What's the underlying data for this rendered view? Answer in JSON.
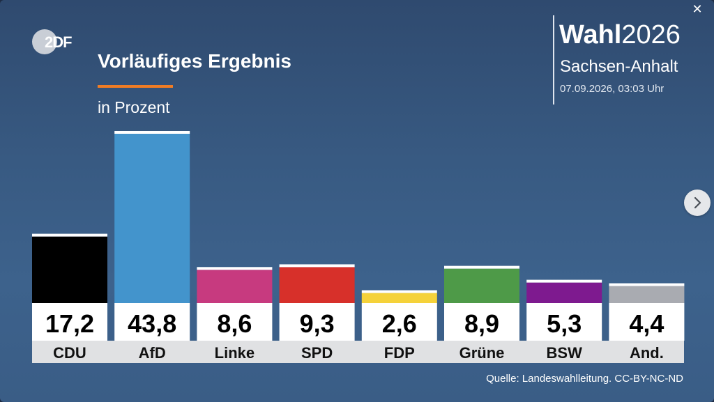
{
  "header": {
    "logo_text": "2DF",
    "title": "Vorläufiges Ergebnis",
    "subtitle": "in Prozent",
    "brand_bold": "Wahl",
    "brand_year": "2026",
    "region": "Sachsen-Anhalt",
    "timestamp": "07.09.2026, 03:03 Uhr"
  },
  "controls": {
    "close_glyph": "✕",
    "close_icon": "close-icon",
    "next_icon": "chevron-right-icon"
  },
  "colors": {
    "accent": "#f07c24",
    "label_band": "#e0e1e3",
    "value_box": "#ffffff"
  },
  "chart_data": {
    "type": "bar",
    "categories": [
      "CDU",
      "AfD",
      "Linke",
      "SPD",
      "FDP",
      "Grüne",
      "BSW",
      "And."
    ],
    "values": [
      17.2,
      43.8,
      8.6,
      9.3,
      2.6,
      8.9,
      5.3,
      4.4
    ],
    "value_labels": [
      "17,2",
      "43,8",
      "8,6",
      "9,3",
      "2,6",
      "8,9",
      "5,3",
      "4,4"
    ],
    "colors": [
      "#000000",
      "#4394cc",
      "#c73a7f",
      "#d7302a",
      "#f5d23a",
      "#4e9a48",
      "#7e1a8f",
      "#a9abb1"
    ],
    "title": "Vorläufiges Ergebnis",
    "ylabel": "in Prozent",
    "ylim": [
      0,
      43.8
    ],
    "grid": false,
    "legend": "none"
  },
  "source": "Quelle: Landeswahlleitung. CC-BY-NC-ND"
}
